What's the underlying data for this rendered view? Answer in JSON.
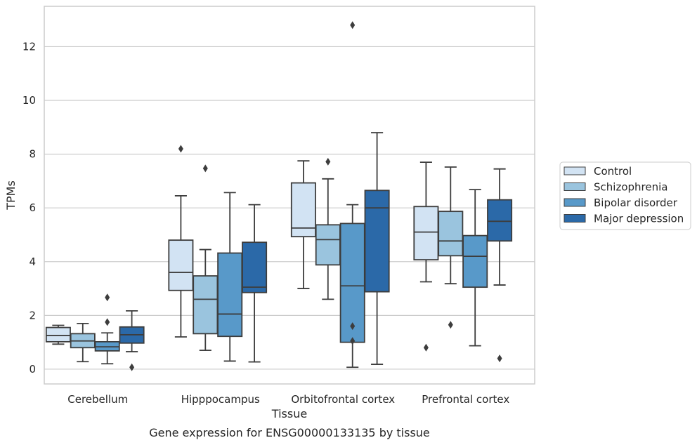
{
  "chart_data": {
    "type": "box",
    "xlabel": "Tissue",
    "ylabel": "TPMs",
    "caption": "Gene expression for ENSG00000133135 by tissue",
    "ylim": [
      -0.55,
      13.5
    ],
    "yticks": [
      0,
      2,
      4,
      6,
      8,
      10,
      12
    ],
    "grid": "horizontal",
    "legend_position": "right",
    "categories": [
      "Cerebellum",
      "Hipppocampus",
      "Orbitofrontal cortex",
      "Prefrontal cortex"
    ],
    "series": [
      {
        "name": "Control",
        "color": "#d2e3f3",
        "boxes": [
          {
            "whislo": 0.93,
            "q1": 1.02,
            "med": 1.25,
            "q3": 1.55,
            "whishi": 1.63,
            "fliers": []
          },
          {
            "whislo": 1.2,
            "q1": 2.93,
            "med": 3.6,
            "q3": 4.8,
            "whishi": 6.45,
            "fliers": [
              8.2
            ]
          },
          {
            "whislo": 3.0,
            "q1": 4.93,
            "med": 5.25,
            "q3": 6.93,
            "whishi": 7.75,
            "fliers": []
          },
          {
            "whislo": 3.25,
            "q1": 4.07,
            "med": 5.1,
            "q3": 6.05,
            "whishi": 7.7,
            "fliers": [
              0.8
            ]
          }
        ]
      },
      {
        "name": "Schizophrenia",
        "color": "#9ac4de",
        "boxes": [
          {
            "whislo": 0.28,
            "q1": 0.8,
            "med": 1.05,
            "q3": 1.32,
            "whishi": 1.7,
            "fliers": []
          },
          {
            "whislo": 0.7,
            "q1": 1.32,
            "med": 2.6,
            "q3": 3.47,
            "whishi": 4.45,
            "fliers": [
              7.47
            ]
          },
          {
            "whislo": 2.6,
            "q1": 3.88,
            "med": 4.82,
            "q3": 5.37,
            "whishi": 7.08,
            "fliers": [
              7.72
            ]
          },
          {
            "whislo": 3.18,
            "q1": 4.22,
            "med": 4.77,
            "q3": 5.87,
            "whishi": 7.52,
            "fliers": [
              1.65
            ]
          }
        ]
      },
      {
        "name": "Bipolar disorder",
        "color": "#5899c9",
        "boxes": [
          {
            "whislo": 0.2,
            "q1": 0.68,
            "med": 0.83,
            "q3": 1.02,
            "whishi": 1.35,
            "fliers": [
              1.75,
              2.67
            ]
          },
          {
            "whislo": 0.3,
            "q1": 1.22,
            "med": 2.05,
            "q3": 4.32,
            "whishi": 6.57,
            "fliers": []
          },
          {
            "whislo": 0.07,
            "q1": 1.0,
            "med": 3.1,
            "q3": 5.42,
            "whishi": 6.12,
            "fliers": [
              1.05,
              1.6,
              12.8
            ]
          },
          {
            "whislo": 0.87,
            "q1": 3.05,
            "med": 4.2,
            "q3": 4.97,
            "whishi": 6.68,
            "fliers": []
          }
        ]
      },
      {
        "name": "Major depression",
        "color": "#2b69a8",
        "boxes": [
          {
            "whislo": 0.65,
            "q1": 0.97,
            "med": 1.28,
            "q3": 1.57,
            "whishi": 2.17,
            "fliers": [
              0.07
            ]
          },
          {
            "whislo": 0.27,
            "q1": 2.85,
            "med": 3.05,
            "q3": 4.72,
            "whishi": 6.12,
            "fliers": []
          },
          {
            "whislo": 0.18,
            "q1": 2.88,
            "med": 6.0,
            "q3": 6.65,
            "whishi": 8.8,
            "fliers": []
          },
          {
            "whislo": 3.13,
            "q1": 4.77,
            "med": 5.5,
            "q3": 6.3,
            "whishi": 7.45,
            "fliers": [
              0.4
            ]
          }
        ]
      }
    ]
  }
}
